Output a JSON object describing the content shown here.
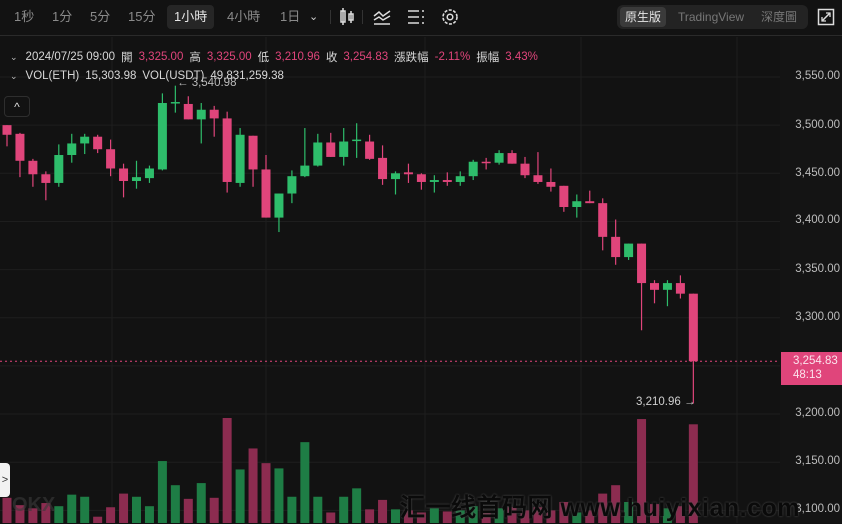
{
  "toolbar": {
    "timeframes": [
      "1秒",
      "1分",
      "5分",
      "15分",
      "1小時",
      "4小時",
      "1日"
    ],
    "selected_timeframe": "1小時",
    "views": [
      "原生版",
      "TradingView",
      "深度圖"
    ],
    "selected_view": "原生版",
    "icons": [
      "chevron-down-icon",
      "candlestick-type-icon",
      "indicator-icon",
      "list-settings-icon",
      "gear-icon",
      "fullscreen-icon"
    ]
  },
  "info": {
    "datetime": "2024/07/25 09:00",
    "open_label": "開",
    "open": "3,325.00",
    "high_label": "高",
    "high": "3,325.00",
    "low_label": "低",
    "low": "3,210.96",
    "close_label": "收",
    "close": "3,254.83",
    "change_label": "漲跌幅",
    "change": "-2.11%",
    "amplitude_label": "振幅",
    "amplitude": "3.43%",
    "vol_eth_label": "VOL(ETH)",
    "vol_eth": "15,303.98",
    "vol_usdt_label": "VOL(USDT)",
    "vol_usdt": "49,831,259.38"
  },
  "price_axis": [
    "3,550.00",
    "3,500.00",
    "3,450.00",
    "3,400.00",
    "3,350.00",
    "3,300.00",
    "3,200.00",
    "3,150.00",
    "3,100.00"
  ],
  "current_price": {
    "price": "3,254.83",
    "countdown": "48:13"
  },
  "annotations": {
    "high_marker": "← 3,540.98",
    "low_marker": "3,210.96 →"
  },
  "controls": {
    "collapse": "^",
    "expand": ">"
  },
  "watermark": {
    "text": "汇一线首码网 www.huiyixian.com",
    "logo": "OKX"
  },
  "colors": {
    "up": "#2ebd6b",
    "down": "#e0457b",
    "up_vol": "#1e7d45",
    "down_vol": "#8c2c50",
    "bg": "#121212"
  },
  "chart_data": {
    "type": "candlestick",
    "symbol": "ETH",
    "interval": "1H",
    "ylim": [
      3100,
      3560
    ],
    "y_ticks": [
      3550,
      3500,
      3450,
      3400,
      3350,
      3300,
      3250,
      3200,
      3150,
      3100
    ],
    "candles": [
      [
        3500,
        3500,
        3478,
        3490
      ],
      [
        3491,
        3492,
        3446,
        3463
      ],
      [
        3463,
        3465,
        3436,
        3449
      ],
      [
        3449,
        3452,
        3422,
        3440
      ],
      [
        3440,
        3480,
        3436,
        3469
      ],
      [
        3469,
        3491,
        3461,
        3481
      ],
      [
        3481,
        3491,
        3470,
        3488
      ],
      [
        3488,
        3490,
        3471,
        3475
      ],
      [
        3475,
        3485,
        3447,
        3455
      ],
      [
        3455,
        3460,
        3425,
        3442
      ],
      [
        3442,
        3463,
        3434,
        3446
      ],
      [
        3445,
        3458,
        3440,
        3455
      ],
      [
        3454,
        3533,
        3453,
        3523
      ],
      [
        3523,
        3541,
        3513,
        3524
      ],
      [
        3522,
        3530,
        3506,
        3506
      ],
      [
        3506,
        3523,
        3481,
        3516
      ],
      [
        3516,
        3520,
        3488,
        3507
      ],
      [
        3507,
        3514,
        3430,
        3441
      ],
      [
        3440,
        3497,
        3436,
        3490
      ],
      [
        3489,
        3489,
        3436,
        3454
      ],
      [
        3454,
        3469,
        3404,
        3404
      ],
      [
        3404,
        3429,
        3389,
        3429
      ],
      [
        3429,
        3453,
        3419,
        3447
      ],
      [
        3447,
        3497,
        3446,
        3458
      ],
      [
        3458,
        3491,
        3457,
        3482
      ],
      [
        3482,
        3492,
        3467,
        3467
      ],
      [
        3467,
        3497,
        3458,
        3483
      ],
      [
        3484,
        3502,
        3466,
        3485
      ],
      [
        3483,
        3490,
        3464,
        3465
      ],
      [
        3466,
        3479,
        3438,
        3444
      ],
      [
        3444,
        3452,
        3428,
        3450
      ],
      [
        3451,
        3460,
        3440,
        3449
      ],
      [
        3449,
        3450,
        3433,
        3441
      ],
      [
        3441,
        3448,
        3430,
        3443
      ],
      [
        3443,
        3451,
        3437,
        3441
      ],
      [
        3441,
        3452,
        3437,
        3447
      ],
      [
        3447,
        3464,
        3443,
        3462
      ],
      [
        3462,
        3466,
        3454,
        3461
      ],
      [
        3461,
        3474,
        3459,
        3471
      ],
      [
        3471,
        3474,
        3460,
        3460
      ],
      [
        3460,
        3467,
        3445,
        3448
      ],
      [
        3448,
        3472,
        3439,
        3441
      ],
      [
        3441,
        3455,
        3431,
        3436
      ],
      [
        3437,
        3437,
        3410,
        3415
      ],
      [
        3415,
        3428,
        3404,
        3421
      ],
      [
        3421,
        3432,
        3419,
        3419
      ],
      [
        3419,
        3424,
        3370,
        3384
      ],
      [
        3384,
        3402,
        3355,
        3363
      ],
      [
        3363,
        3377,
        3360,
        3377
      ],
      [
        3377,
        3377,
        3287,
        3336
      ],
      [
        3336,
        3339,
        3315,
        3329
      ],
      [
        3329,
        3339,
        3312,
        3336
      ],
      [
        3336,
        3344,
        3320,
        3325
      ],
      [
        3325,
        3325,
        3210.96,
        3254.83
      ]
    ],
    "candle_format": [
      "open",
      "high",
      "low",
      "close"
    ],
    "volume_relative": [
      0.24,
      0.17,
      0.14,
      0.19,
      0.16,
      0.27,
      0.25,
      0.06,
      0.15,
      0.28,
      0.25,
      0.16,
      0.59,
      0.36,
      0.23,
      0.38,
      0.24,
      1.0,
      0.51,
      0.71,
      0.57,
      0.52,
      0.25,
      0.77,
      0.25,
      0.1,
      0.25,
      0.33,
      0.13,
      0.22,
      0.13,
      0.12,
      0.1,
      0.14,
      0.11,
      0.12,
      0.16,
      0.12,
      0.14,
      0.15,
      0.12,
      0.15,
      0.12,
      0.2,
      0.1,
      0.12,
      0.28,
      0.36,
      0.2,
      0.99,
      0.18,
      0.14,
      0.16,
      0.94
    ]
  }
}
